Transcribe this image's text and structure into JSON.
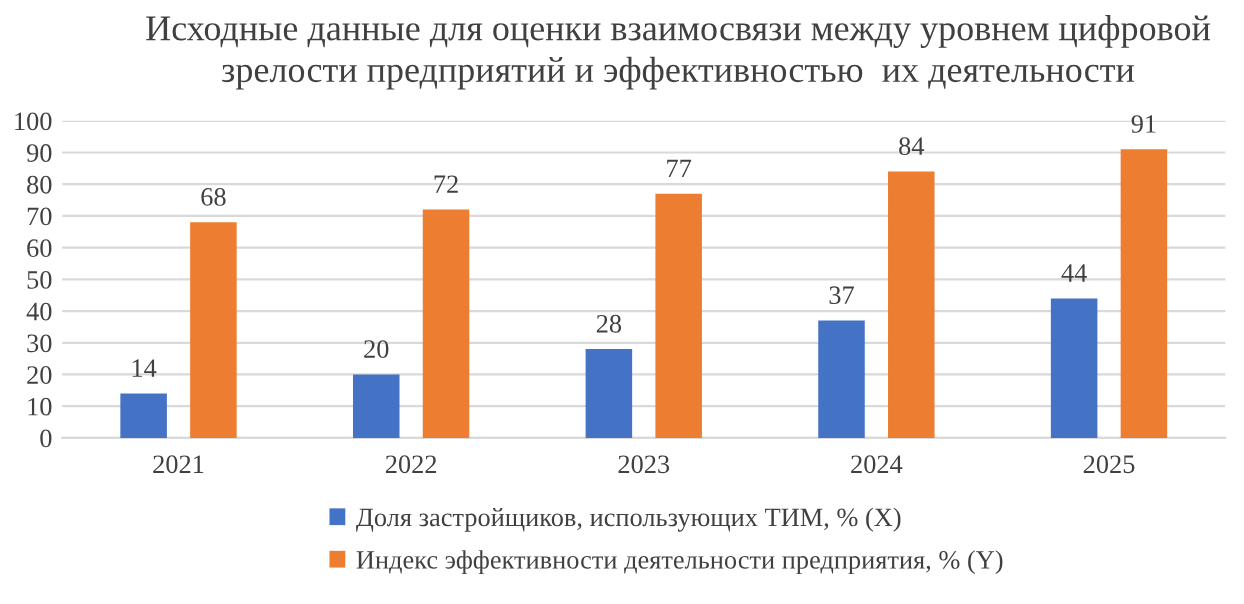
{
  "chart_data": {
    "type": "bar",
    "title": "Исходные данные для оценки взаимосвязи между уровнем цифровой\nзрелости предприятий и эффективностью  их деятельности",
    "categories": [
      "2021",
      "2022",
      "2023",
      "2024",
      "2025"
    ],
    "series": [
      {
        "name": "Доля застройщиков, использующих ТИМ, % (X)",
        "color": "#4472c4",
        "values": [
          14,
          20,
          28,
          37,
          44
        ]
      },
      {
        "name": "Индекс эффективности деятельности предприятия, % (Y)",
        "color": "#ed7d31",
        "values": [
          68,
          72,
          77,
          84,
          91
        ]
      }
    ],
    "ylim": [
      0,
      100
    ],
    "yticks": [
      0,
      10,
      20,
      30,
      40,
      50,
      60,
      70,
      80,
      90,
      100
    ],
    "grid": "y",
    "legend": "bottom",
    "data_labels": true
  }
}
